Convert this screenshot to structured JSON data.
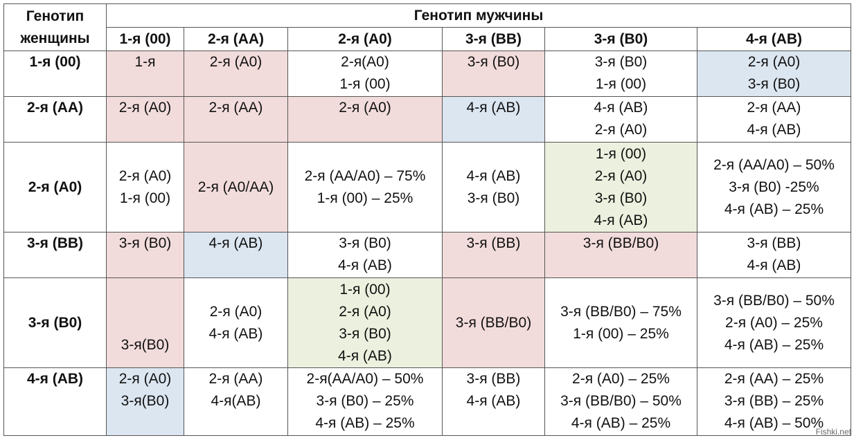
{
  "header": {
    "corner": [
      "Генотип",
      "женщины"
    ],
    "male_title": "Генотип мужчины",
    "columns": [
      "1-я (00)",
      "2-я (АА)",
      "2-я (А0)",
      "3-я (ВВ)",
      "3-я (В0)",
      "4-я (АВ)"
    ]
  },
  "rows": [
    {
      "label": "1-я (00)",
      "cells": [
        {
          "lines": [
            "1-я"
          ],
          "color": "pink"
        },
        {
          "lines": [
            "2-я (А0)"
          ],
          "color": "pink"
        },
        {
          "lines": [
            "2-я(А0)",
            "1-я (00)"
          ],
          "color": ""
        },
        {
          "lines": [
            "3-я (В0)"
          ],
          "color": "pink"
        },
        {
          "lines": [
            "3-я (В0)",
            "1-я (00)"
          ],
          "color": ""
        },
        {
          "lines": [
            "2-я (А0)",
            "3-я (В0)"
          ],
          "color": "blue"
        }
      ]
    },
    {
      "label": "2-я (АА)",
      "cells": [
        {
          "lines": [
            "2-я (А0)"
          ],
          "color": "pink"
        },
        {
          "lines": [
            "2-я (АА)"
          ],
          "color": "pink"
        },
        {
          "lines": [
            "2-я (А0)"
          ],
          "color": "pink"
        },
        {
          "lines": [
            "4-я (АВ)"
          ],
          "color": "blue"
        },
        {
          "lines": [
            "4-я (АВ)",
            "2-я (А0)"
          ],
          "color": ""
        },
        {
          "lines": [
            "2-я (АА)",
            "4-я (АВ)"
          ],
          "color": ""
        }
      ]
    },
    {
      "label": "2-я (А0)",
      "cells": [
        {
          "lines": [
            "2-я (А0)",
            "1-я (00)"
          ],
          "color": ""
        },
        {
          "lines": [
            "2-я (А0/АА)"
          ],
          "color": "pink"
        },
        {
          "lines": [
            "2-я (АА/А0) – 75%",
            "1-я (00) – 25%"
          ],
          "color": ""
        },
        {
          "lines": [
            "4-я (АВ)",
            "3-я (В0)"
          ],
          "color": ""
        },
        {
          "lines": [
            "1-я (00)",
            "2-я (А0)",
            "3-я (В0)",
            "4-я (АВ)"
          ],
          "color": "green"
        },
        {
          "lines": [
            "2-я (АА/А0) – 50%",
            "3-я (В0) -25%",
            "4-я (АВ) – 25%"
          ],
          "color": ""
        }
      ]
    },
    {
      "label": "3-я (ВВ)",
      "cells": [
        {
          "lines": [
            "3-я (В0)"
          ],
          "color": "pink"
        },
        {
          "lines": [
            "4-я (АВ)"
          ],
          "color": "blue"
        },
        {
          "lines": [
            "3-я (В0)",
            "4-я (АВ)"
          ],
          "color": ""
        },
        {
          "lines": [
            "3-я (ВВ)"
          ],
          "color": "pink"
        },
        {
          "lines": [
            "3-я (ВВ/В0)"
          ],
          "color": "pink"
        },
        {
          "lines": [
            "3-я (ВВ)",
            "4-я (АВ)"
          ],
          "color": ""
        }
      ]
    },
    {
      "label": "3-я (В0)",
      "cells": [
        {
          "lines": [
            "3-я(В0)"
          ],
          "color": "pink",
          "valign": "bottom"
        },
        {
          "lines": [
            "2-я (А0)",
            "4-я (АВ)"
          ],
          "color": ""
        },
        {
          "lines": [
            "1-я (00)",
            "2-я (А0)",
            "3-я (В0)",
            "4-я (АВ)"
          ],
          "color": "green"
        },
        {
          "lines": [
            "3-я (ВВ/В0)"
          ],
          "color": "pink"
        },
        {
          "lines": [
            "3-я (ВВ/В0) – 75%",
            "1-я (00) – 25%"
          ],
          "color": ""
        },
        {
          "lines": [
            "3-я (ВВ/В0) – 50%",
            "2-я (А0) – 25%",
            "4-я (АВ) – 25%"
          ],
          "color": ""
        }
      ]
    },
    {
      "label": "4-я (АВ)",
      "cells": [
        {
          "lines": [
            "2-я (А0)",
            "3-я(В0)"
          ],
          "color": "blue"
        },
        {
          "lines": [
            "2-я (АА)",
            "4-я(АВ)"
          ],
          "color": ""
        },
        {
          "lines": [
            "2-я(АА/А0) – 50%",
            "3-я (В0) – 25%",
            "4-я (АВ) – 25%"
          ],
          "color": ""
        },
        {
          "lines": [
            "3-я (ВВ)",
            "4-я (АВ)"
          ],
          "color": ""
        },
        {
          "lines": [
            "2-я (А0) – 25%",
            "3-я (ВВ/В0) – 50%",
            "4-я (АВ) – 25%"
          ],
          "color": ""
        },
        {
          "lines": [
            "2-я (АА) – 25%",
            "3-я (ВВ) – 25%",
            "4-я (АВ) – 50%"
          ],
          "color": ""
        }
      ]
    }
  ],
  "watermark": "Fishki.net"
}
